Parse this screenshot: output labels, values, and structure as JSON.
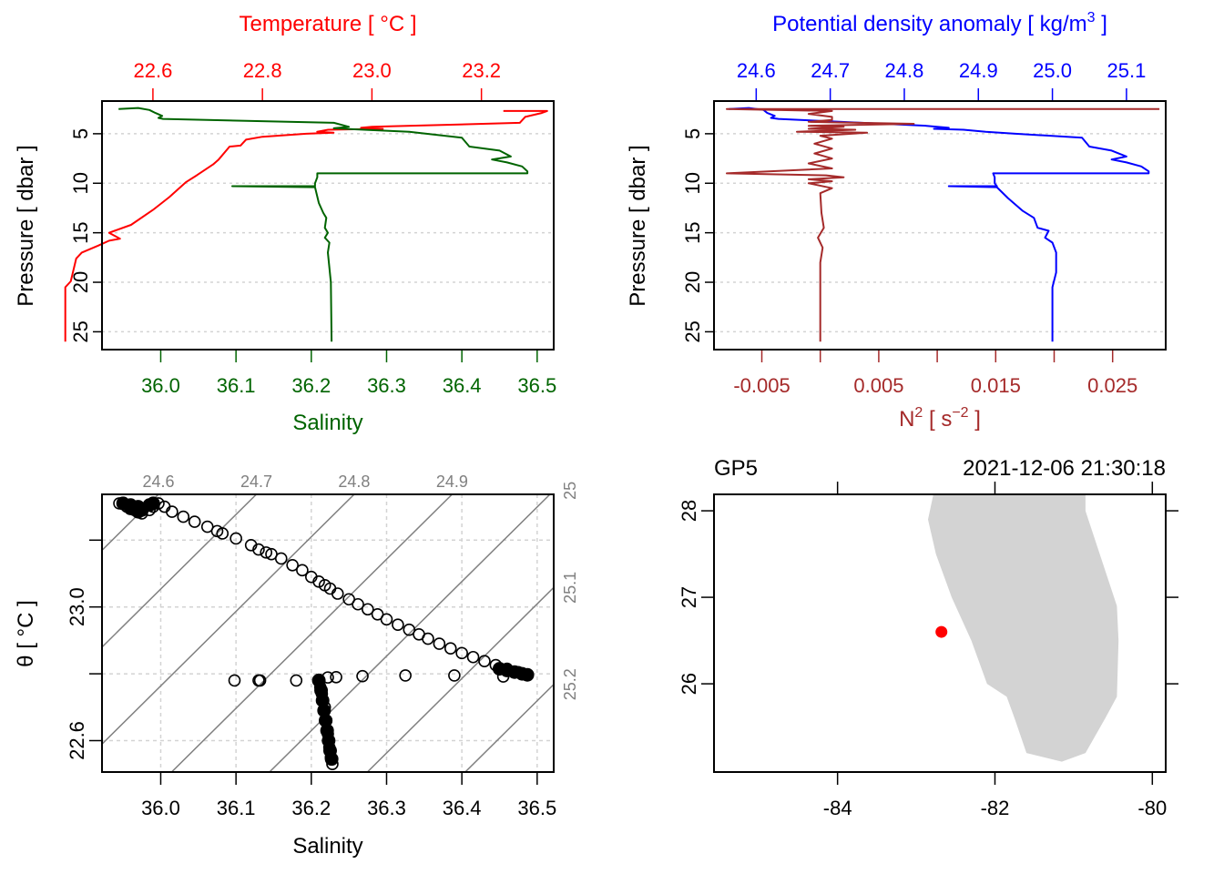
{
  "colors": {
    "temperature": "#ff0000",
    "salinity": "#006400",
    "density": "#0000ff",
    "n2": "#a52a2a",
    "isopycnal": "#808080",
    "grid": "#d3d3d3",
    "land": "#d3d3d3",
    "station": "#ff0000",
    "axis": "#000000"
  },
  "chart_data": [
    {
      "id": "salinity-temperature-profile",
      "type": "line",
      "ylabel": "Pressure [ dbar ]",
      "yticks": [
        5,
        10,
        15,
        20,
        25
      ],
      "ylim": [
        26.8,
        1.7
      ],
      "grid": true,
      "top_axis": {
        "label": "Temperature [ °C ]",
        "ticks": [
          22.6,
          22.8,
          23.0,
          23.2
        ],
        "tick_labels": [
          "22.6",
          "22.8",
          "23.0",
          "23.2"
        ],
        "lim": [
          22.507,
          23.332
        ]
      },
      "bottom_axis": {
        "label": "Salinity",
        "ticks": [
          36.0,
          36.1,
          36.2,
          36.3,
          36.4,
          36.5
        ],
        "tick_labels": [
          "36.0",
          "36.1",
          "36.2",
          "36.3",
          "36.4",
          "36.5"
        ],
        "lim": [
          35.922,
          36.522
        ]
      },
      "series": [
        {
          "name": "Temperature",
          "axis": "top",
          "points": [
            [
              23.24,
              2.7
            ],
            [
              23.32,
              2.7
            ],
            [
              23.31,
              2.9
            ],
            [
              23.28,
              3.3
            ],
            [
              23.27,
              3.9
            ],
            [
              23.0,
              4.3
            ],
            [
              22.98,
              4.4
            ],
            [
              23.02,
              4.5
            ],
            [
              22.92,
              4.6
            ],
            [
              22.9,
              4.8
            ],
            [
              22.93,
              4.9
            ],
            [
              22.88,
              5.0
            ],
            [
              22.8,
              5.3
            ],
            [
              22.77,
              5.6
            ],
            [
              22.76,
              6.2
            ],
            [
              22.74,
              6.3
            ],
            [
              22.72,
              7.6
            ],
            [
              22.71,
              8.1
            ],
            [
              22.68,
              9.2
            ],
            [
              22.66,
              9.9
            ],
            [
              22.63,
              11.4
            ],
            [
              22.6,
              12.7
            ],
            [
              22.56,
              14.2
            ],
            [
              22.53,
              14.8
            ],
            [
              22.52,
              15.0
            ],
            [
              22.54,
              15.6
            ],
            [
              22.52,
              15.8
            ],
            [
              22.5,
              16.3
            ],
            [
              22.47,
              17.0
            ],
            [
              22.46,
              17.6
            ],
            [
              22.45,
              19.9
            ],
            [
              22.44,
              20.5
            ],
            [
              22.44,
              26.0
            ]
          ]
        },
        {
          "name": "Salinity",
          "axis": "bottom",
          "points": [
            [
              35.944,
              2.5
            ],
            [
              35.97,
              2.4
            ],
            [
              35.985,
              2.6
            ],
            [
              35.993,
              2.9
            ],
            [
              36.002,
              3.2
            ],
            [
              35.997,
              3.4
            ],
            [
              36.003,
              3.5
            ],
            [
              36.23,
              3.9
            ],
            [
              36.25,
              4.3
            ],
            [
              36.23,
              4.45
            ],
            [
              36.27,
              4.6
            ],
            [
              36.33,
              4.8
            ],
            [
              36.4,
              5.4
            ],
            [
              36.41,
              6.3
            ],
            [
              36.45,
              6.7
            ],
            [
              36.465,
              7.3
            ],
            [
              36.44,
              7.6
            ],
            [
              36.46,
              7.9
            ],
            [
              36.48,
              8.3
            ],
            [
              36.487,
              8.8
            ],
            [
              36.487,
              9.0
            ],
            [
              36.208,
              9.0
            ],
            [
              36.208,
              9.4
            ],
            [
              36.205,
              10.0
            ],
            [
              36.205,
              10.3
            ],
            [
              36.095,
              10.3
            ],
            [
              36.205,
              10.4
            ],
            [
              36.21,
              12.0
            ],
            [
              36.216,
              13.0
            ],
            [
              36.22,
              13.5
            ],
            [
              36.218,
              14.5
            ],
            [
              36.222,
              15.0
            ],
            [
              36.218,
              15.5
            ],
            [
              36.224,
              16.0
            ],
            [
              36.222,
              17.0
            ],
            [
              36.226,
              20.0
            ],
            [
              36.227,
              26.0
            ]
          ]
        }
      ]
    },
    {
      "id": "density-n2-profile",
      "type": "line",
      "ylabel": "Pressure [ dbar ]",
      "yticks": [
        5,
        10,
        15,
        20,
        25
      ],
      "ylim": [
        26.8,
        1.7
      ],
      "grid": true,
      "top_axis": {
        "label": "Potential density anomaly [ kg/m³ ]",
        "ticks": [
          24.6,
          24.7,
          24.8,
          24.9,
          25.0,
          25.1
        ],
        "tick_labels": [
          "24.6",
          "24.7",
          "24.8",
          "24.9",
          "25.0",
          "25.1"
        ],
        "lim": [
          24.543,
          25.153
        ]
      },
      "bottom_axis": {
        "label": "N² [ s⁻² ]",
        "ticks": [
          -0.005,
          0.0,
          0.005,
          0.01,
          0.015,
          0.02,
          0.025
        ],
        "tick_labels": [
          "-0.005",
          "",
          "0.005",
          "",
          "0.015",
          "",
          "0.025"
        ],
        "lim": [
          -0.00909,
          0.02954
        ]
      },
      "series": [
        {
          "name": "Potential density anomaly",
          "axis": "top",
          "points": [
            [
              24.563,
              2.5
            ],
            [
              24.59,
              2.4
            ],
            [
              24.61,
              2.6
            ],
            [
              24.615,
              2.9
            ],
            [
              24.625,
              3.2
            ],
            [
              24.62,
              3.4
            ],
            [
              24.63,
              3.5
            ],
            [
              24.83,
              4.2
            ],
            [
              24.86,
              4.4
            ],
            [
              24.84,
              4.5
            ],
            [
              24.88,
              4.6
            ],
            [
              24.91,
              4.8
            ],
            [
              24.95,
              5.0
            ],
            [
              25.04,
              5.4
            ],
            [
              25.05,
              6.3
            ],
            [
              25.08,
              6.7
            ],
            [
              25.1,
              7.3
            ],
            [
              25.08,
              7.6
            ],
            [
              25.1,
              7.9
            ],
            [
              25.12,
              8.3
            ],
            [
              25.13,
              8.8
            ],
            [
              25.13,
              9.0
            ],
            [
              24.92,
              9.0
            ],
            [
              24.922,
              9.4
            ],
            [
              24.922,
              10.0
            ],
            [
              24.925,
              10.3
            ],
            [
              24.86,
              10.3
            ],
            [
              24.925,
              10.4
            ],
            [
              24.94,
              11.5
            ],
            [
              24.96,
              12.8
            ],
            [
              24.975,
              13.5
            ],
            [
              24.98,
              14.5
            ],
            [
              24.995,
              14.8
            ],
            [
              24.99,
              15.5
            ],
            [
              25.0,
              16.0
            ],
            [
              25.005,
              17.0
            ],
            [
              25.005,
              19.0
            ],
            [
              25.0,
              20.5
            ],
            [
              25.0,
              26.0
            ]
          ]
        },
        {
          "name": "N2",
          "axis": "bottom",
          "points": [
            [
              0.029,
              2.5
            ],
            [
              -0.008,
              2.5
            ],
            [
              0.001,
              2.7
            ],
            [
              -0.001,
              3.0
            ],
            [
              0.001,
              3.3
            ],
            [
              0.001,
              3.6
            ],
            [
              -0.001,
              3.8
            ],
            [
              0.008,
              4.0
            ],
            [
              -0.001,
              4.2
            ],
            [
              0.002,
              4.3
            ],
            [
              -0.001,
              4.5
            ],
            [
              0.003,
              4.6
            ],
            [
              -0.002,
              4.8
            ],
            [
              0.004,
              4.9
            ],
            [
              0.0,
              5.2
            ],
            [
              0.001,
              5.5
            ],
            [
              -0.0005,
              6.0
            ],
            [
              0.001,
              6.5
            ],
            [
              -0.0005,
              7.0
            ],
            [
              0.001,
              7.5
            ],
            [
              -0.001,
              8.0
            ],
            [
              0.001,
              8.5
            ],
            [
              -0.008,
              9.0
            ],
            [
              0.0005,
              9.2
            ],
            [
              0.002,
              9.4
            ],
            [
              -0.001,
              9.6
            ],
            [
              0.001,
              9.8
            ],
            [
              -0.001,
              10.0
            ],
            [
              0.001,
              10.5
            ],
            [
              0.0,
              11.0
            ],
            [
              0.0001,
              13.0
            ],
            [
              0.0003,
              14.5
            ],
            [
              -0.0002,
              15.5
            ],
            [
              0.0002,
              16.5
            ],
            [
              0.0,
              18.0
            ],
            [
              0.0,
              26.0
            ]
          ]
        }
      ]
    },
    {
      "id": "ts-diagram",
      "type": "scatter",
      "xlabel": "Salinity",
      "ylabel": "θ [ °C ]",
      "xticks": [
        36.0,
        36.1,
        36.2,
        36.3,
        36.4,
        36.5
      ],
      "xtick_labels": [
        "36.0",
        "36.1",
        "36.2",
        "36.3",
        "36.4",
        "36.5"
      ],
      "yticks": [
        22.6,
        22.8,
        23.0,
        23.2
      ],
      "ytick_labels": [
        "22.6",
        "",
        "23.0",
        ""
      ],
      "xlim": [
        35.922,
        36.522
      ],
      "ylim": [
        22.506,
        23.337
      ],
      "grid": true,
      "isopycnals": {
        "values": [
          24.5,
          24.6,
          24.7,
          24.8,
          24.9,
          25.0,
          25.1,
          25.2,
          25.3
        ],
        "top_labels": [
          "24.6",
          "24.7",
          "24.8",
          "24.9"
        ],
        "right_labels": [
          "25",
          "25.1",
          "25.2"
        ]
      },
      "points": [
        [
          35.945,
          23.31
        ],
        [
          35.955,
          23.3
        ],
        [
          35.965,
          23.29
        ],
        [
          35.975,
          23.28
        ],
        [
          35.985,
          23.29
        ],
        [
          35.99,
          23.3
        ],
        [
          35.997,
          23.31
        ],
        [
          36.005,
          23.3
        ],
        [
          36.015,
          23.285
        ],
        [
          36.03,
          23.27
        ],
        [
          36.045,
          23.255
        ],
        [
          36.062,
          23.24
        ],
        [
          36.075,
          23.227
        ],
        [
          36.082,
          23.22
        ],
        [
          36.1,
          23.205
        ],
        [
          36.12,
          23.185
        ],
        [
          36.13,
          23.172
        ],
        [
          36.14,
          23.163
        ],
        [
          36.147,
          23.158
        ],
        [
          36.16,
          23.145
        ],
        [
          36.175,
          23.125
        ],
        [
          36.188,
          23.11
        ],
        [
          36.2,
          23.09
        ],
        [
          36.21,
          23.076
        ],
        [
          36.218,
          23.065
        ],
        [
          36.225,
          23.055
        ],
        [
          36.235,
          23.04
        ],
        [
          36.25,
          23.023
        ],
        [
          36.262,
          23.008
        ],
        [
          36.275,
          22.993
        ],
        [
          36.288,
          22.978
        ],
        [
          36.3,
          22.963
        ],
        [
          36.315,
          22.947
        ],
        [
          36.33,
          22.932
        ],
        [
          36.343,
          22.918
        ],
        [
          36.355,
          22.905
        ],
        [
          36.37,
          22.89
        ],
        [
          36.385,
          22.876
        ],
        [
          36.4,
          22.862
        ],
        [
          36.415,
          22.85
        ],
        [
          36.43,
          22.838
        ],
        [
          36.445,
          22.826
        ],
        [
          36.46,
          22.815
        ],
        [
          36.475,
          22.805
        ],
        [
          36.487,
          22.797
        ],
        [
          36.455,
          22.792
        ],
        [
          36.39,
          22.795
        ],
        [
          36.325,
          22.795
        ],
        [
          36.268,
          22.793
        ],
        [
          36.233,
          22.79
        ],
        [
          36.222,
          22.789
        ],
        [
          36.098,
          22.78
        ],
        [
          36.13,
          22.78
        ],
        [
          36.132,
          22.78
        ],
        [
          36.18,
          22.78
        ],
        [
          36.21,
          22.782
        ],
        [
          36.212,
          22.76
        ],
        [
          36.214,
          22.74
        ],
        [
          36.218,
          22.7
        ],
        [
          36.22,
          22.66
        ],
        [
          36.222,
          22.62
        ],
        [
          36.224,
          22.58
        ],
        [
          36.226,
          22.55
        ],
        [
          36.228,
          22.53
        ]
      ]
    },
    {
      "id": "station-map",
      "type": "scatter",
      "title_left": "GP5",
      "title_right": "2021-12-06 21:30:18",
      "xticks": [
        -84,
        -82,
        -80
      ],
      "xtick_labels": [
        "-84",
        "-82",
        "-80"
      ],
      "yticks": [
        26,
        27,
        28
      ],
      "ytick_labels": [
        "26",
        "27",
        "28"
      ],
      "xlim": [
        -85.57,
        -79.83
      ],
      "ylim": [
        24.98,
        28.19
      ],
      "grid": false,
      "station": {
        "lon": -82.68,
        "lat": 26.6
      },
      "land_polygon": [
        [
          -82.78,
          28.2
        ],
        [
          -82.85,
          27.9
        ],
        [
          -82.75,
          27.5
        ],
        [
          -82.55,
          27.0
        ],
        [
          -82.3,
          26.5
        ],
        [
          -82.1,
          26.0
        ],
        [
          -81.85,
          25.85
        ],
        [
          -81.75,
          25.6
        ],
        [
          -81.6,
          25.2
        ],
        [
          -81.15,
          25.1
        ],
        [
          -80.85,
          25.2
        ],
        [
          -80.6,
          25.6
        ],
        [
          -80.45,
          25.85
        ],
        [
          -80.43,
          26.5
        ],
        [
          -80.45,
          26.9
        ],
        [
          -80.85,
          28.0
        ],
        [
          -80.85,
          28.2
        ]
      ]
    }
  ]
}
